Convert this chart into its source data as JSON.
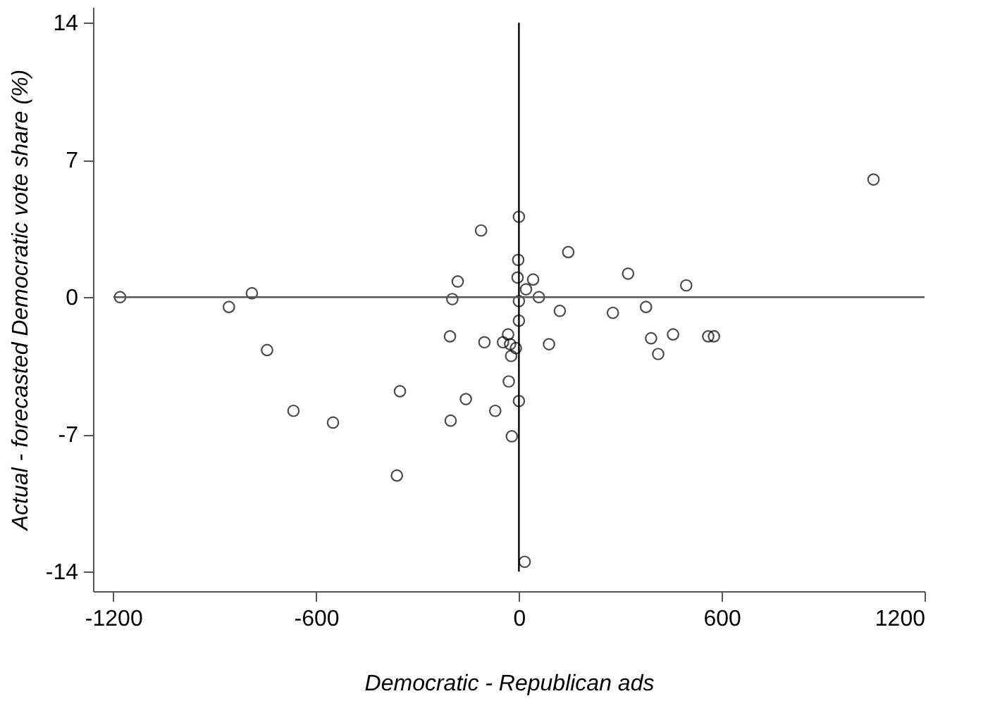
{
  "chart_data": {
    "type": "scatter",
    "xlabel": "Democratic - Republican ads",
    "ylabel": "Actual - forecasted Democratic  vote share (%)",
    "x": [
      -1180,
      -858,
      -790,
      -745,
      -667,
      -550,
      -352,
      -361,
      -112,
      -181,
      -197,
      -204,
      -102,
      -157,
      -202,
      -70,
      -21,
      -30,
      0,
      -32,
      -47,
      -26,
      -9,
      -23,
      0,
      0,
      -4,
      -2,
      0,
      42,
      21,
      59,
      121,
      89,
      146,
      278,
      323,
      376,
      391,
      412,
      456,
      495,
      560,
      577,
      1049,
      17
    ],
    "series": [
      {
        "color": "#000000",
        "values": [
          0.0,
          -0.5,
          0.2,
          -2.7,
          -5.8,
          -6.4,
          -4.8,
          -9.1,
          3.4,
          0.8,
          -0.1,
          -2.0,
          -2.3,
          -5.2,
          -6.3,
          -5.8,
          -7.1,
          -4.3,
          -5.3,
          -1.9,
          -2.3,
          -2.4,
          -2.6,
          -3.0,
          -1.2,
          -0.2,
          1.0,
          1.9,
          4.1,
          0.9,
          0.4,
          0.0,
          -0.7,
          -2.4,
          2.3,
          -0.8,
          1.2,
          -0.5,
          -2.1,
          -2.9,
          -1.9,
          0.6,
          -2.0,
          -2.0,
          6.0,
          -13.5
        ]
      }
    ],
    "marker": "circle",
    "grid": false,
    "xlim": [
      -1260,
      1200
    ],
    "xticks": [
      -1200,
      -600,
      0,
      600,
      1200
    ],
    "ylim": [
      -15,
      14.8
    ],
    "yticks": [
      -14,
      -7,
      0,
      7,
      14
    ],
    "ref_lines": [
      {
        "axis": "x",
        "value": 0,
        "color": "#000000"
      },
      {
        "axis": "y",
        "value": 0,
        "color": "#555555"
      }
    ]
  }
}
